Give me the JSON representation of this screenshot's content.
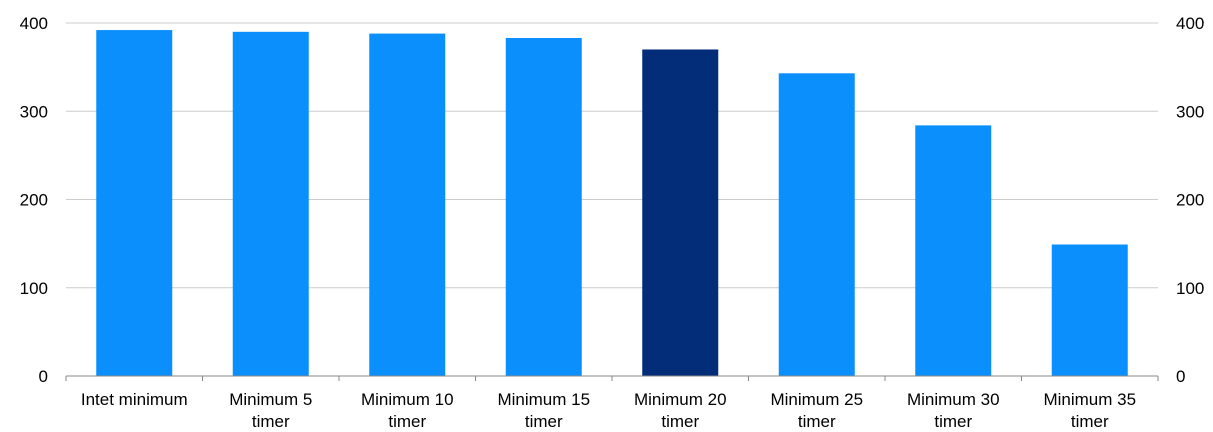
{
  "chart_data": {
    "type": "bar",
    "categories": [
      [
        "Intet minimum"
      ],
      [
        "Minimum 5",
        "timer"
      ],
      [
        "Minimum 10",
        "timer"
      ],
      [
        "Minimum 15",
        "timer"
      ],
      [
        "Minimum 20",
        "timer"
      ],
      [
        "Minimum 25",
        "timer"
      ],
      [
        "Minimum 30",
        "timer"
      ],
      [
        "Minimum 35",
        "timer"
      ]
    ],
    "values": [
      392,
      390,
      388,
      383,
      370,
      343,
      284,
      149
    ],
    "bar_colors": [
      "#0a8ffd",
      "#0a8ffd",
      "#0a8ffd",
      "#0a8ffd",
      "#032d78",
      "#0a8ffd",
      "#0a8ffd",
      "#0a8ffd"
    ],
    "title": "",
    "xlabel": "",
    "ylabel": "",
    "ylim": [
      0,
      400
    ],
    "yticks": [
      "0",
      "100",
      "200",
      "300",
      "400"
    ],
    "secondary_axis": true,
    "grid": true,
    "legend": "none"
  }
}
